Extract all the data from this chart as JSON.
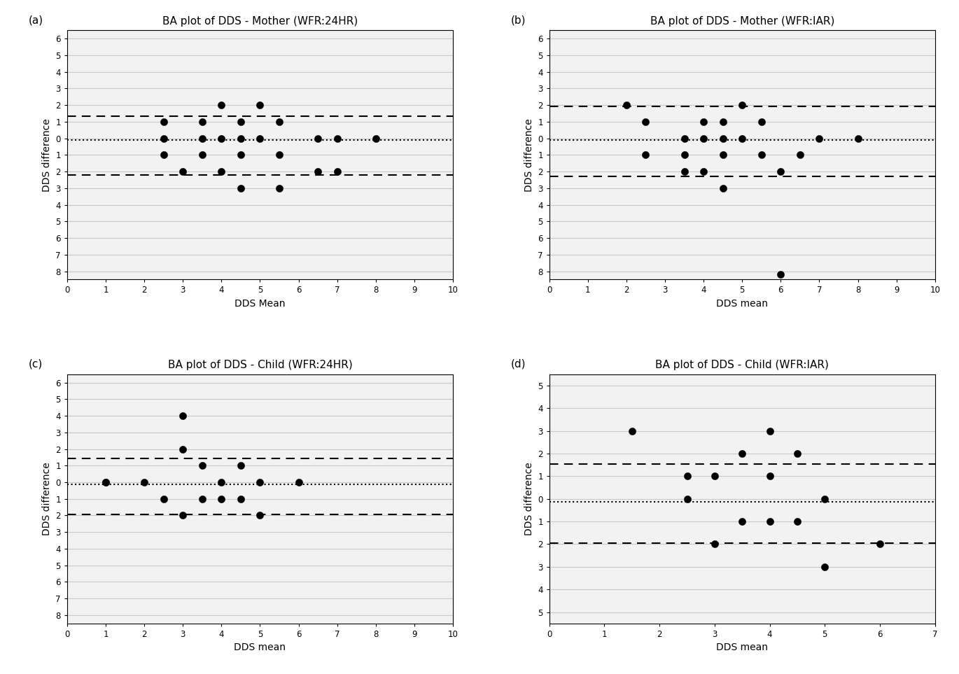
{
  "panels": [
    {
      "label": "(a)",
      "title": "BA plot of DDS - Mother (WFR:24HR)",
      "xlabel": "DDS Mean",
      "ylabel": "DDS difference",
      "xlim": [
        0,
        10
      ],
      "ylim": [
        -8.5,
        6.5
      ],
      "ytick_vals": [
        6,
        5,
        4,
        3,
        2,
        1,
        0,
        -1,
        -2,
        -3,
        -4,
        -5,
        -6,
        -7,
        -8
      ],
      "ytick_labels": [
        "6",
        "5",
        "4",
        "3",
        "2",
        "1",
        "0",
        "1",
        "2",
        "3",
        "4",
        "5",
        "6",
        "7",
        "8"
      ],
      "xticks": [
        0,
        1,
        2,
        3,
        4,
        5,
        6,
        7,
        8,
        9,
        10
      ],
      "mean_line": -0.12,
      "upper_loa": 1.35,
      "lower_loa": -2.19,
      "x_data": [
        2.5,
        2.5,
        2.5,
        3.0,
        3.5,
        3.5,
        3.5,
        4.0,
        4.0,
        4.0,
        4.5,
        4.5,
        4.5,
        4.5,
        5.0,
        5.0,
        5.5,
        5.5,
        5.5,
        6.5,
        6.5,
        7.0,
        7.0,
        8.0
      ],
      "y_data": [
        0,
        -1,
        1,
        -2,
        0,
        -1,
        1,
        2,
        0,
        -2,
        1,
        0,
        -1,
        -3,
        2,
        0,
        1,
        -1,
        -3,
        0,
        -2,
        0,
        -2,
        0
      ]
    },
    {
      "label": "(b)",
      "title": "BA plot of DDS - Mother (WFR:IAR)",
      "xlabel": "DDS mean",
      "ylabel": "DDS difference",
      "xlim": [
        0,
        10
      ],
      "ylim": [
        -8.5,
        6.5
      ],
      "ytick_vals": [
        6,
        5,
        4,
        3,
        2,
        1,
        0,
        -1,
        -2,
        -3,
        -4,
        -5,
        -6,
        -7,
        -8
      ],
      "ytick_labels": [
        "6",
        "5",
        "4",
        "3",
        "2",
        "1",
        "0",
        "1",
        "2",
        "3",
        "4",
        "5",
        "6",
        "7",
        "8"
      ],
      "xticks": [
        0,
        1,
        2,
        3,
        4,
        5,
        6,
        7,
        8,
        9,
        10
      ],
      "mean_line": -0.12,
      "upper_loa": 1.94,
      "lower_loa": -2.28,
      "x_data": [
        2.0,
        2.5,
        2.5,
        3.5,
        3.5,
        3.5,
        4.0,
        4.0,
        4.0,
        4.5,
        4.5,
        4.5,
        4.5,
        5.0,
        5.0,
        5.5,
        5.5,
        6.0,
        6.5,
        7.0,
        8.0,
        6.0
      ],
      "y_data": [
        2,
        1,
        -1,
        0,
        -1,
        -2,
        1,
        0,
        -2,
        1,
        0,
        -1,
        -3,
        2,
        0,
        1,
        -1,
        -2,
        -1,
        0,
        0,
        -8.2
      ]
    },
    {
      "label": "(c)",
      "title": "BA plot of DDS - Child (WFR:24HR)",
      "xlabel": "DDS mean",
      "ylabel": "DDS difference",
      "xlim": [
        0,
        10
      ],
      "ylim": [
        -8.5,
        6.5
      ],
      "ytick_vals": [
        6,
        5,
        4,
        3,
        2,
        1,
        0,
        -1,
        -2,
        -3,
        -4,
        -5,
        -6,
        -7,
        -8
      ],
      "ytick_labels": [
        "6",
        "5",
        "4",
        "3",
        "2",
        "1",
        "0",
        "1",
        "2",
        "3",
        "4",
        "5",
        "6",
        "7",
        "8"
      ],
      "xticks": [
        0,
        1,
        2,
        3,
        4,
        5,
        6,
        7,
        8,
        9,
        10
      ],
      "mean_line": -0.12,
      "upper_loa": 1.42,
      "lower_loa": -1.92,
      "x_data": [
        1.0,
        1.0,
        2.0,
        2.5,
        3.0,
        3.0,
        3.0,
        3.5,
        3.5,
        4.0,
        4.0,
        4.5,
        4.5,
        5.0,
        5.0,
        6.0
      ],
      "y_data": [
        0,
        0,
        0,
        -1,
        4,
        2,
        -2,
        1,
        -1,
        0,
        -1,
        1,
        -1,
        0,
        -2,
        0
      ]
    },
    {
      "label": "(d)",
      "title": "BA plot of DDS - Child (WFR:IAR)",
      "xlabel": "DDS mean",
      "ylabel": "DDS difference",
      "xlim": [
        0,
        7
      ],
      "ylim": [
        -5.5,
        5.5
      ],
      "ytick_vals": [
        5,
        4,
        3,
        2,
        1,
        0,
        -1,
        -2,
        -3,
        -4,
        -5
      ],
      "ytick_labels": [
        "5",
        "4",
        "3",
        "2",
        "1",
        "0",
        "1",
        "2",
        "3",
        "4",
        "5"
      ],
      "xticks": [
        0,
        1,
        2,
        3,
        4,
        5,
        6,
        7
      ],
      "mean_line": -0.12,
      "upper_loa": 1.54,
      "lower_loa": -1.94,
      "x_data": [
        1.5,
        2.5,
        2.5,
        3.0,
        3.0,
        3.5,
        3.5,
        4.0,
        4.0,
        4.0,
        4.5,
        4.5,
        5.0,
        5.0,
        6.0
      ],
      "y_data": [
        3,
        0,
        1,
        -2,
        1,
        2,
        -1,
        3,
        1,
        -1,
        2,
        -1,
        0,
        -3,
        -2
      ]
    }
  ],
  "dot_color": "#000000",
  "dot_size": 55,
  "mean_line_color": "#000000",
  "loa_line_color": "#000000",
  "grid_color": "#c8c8c8",
  "axis_bg": "#f2f2f2"
}
